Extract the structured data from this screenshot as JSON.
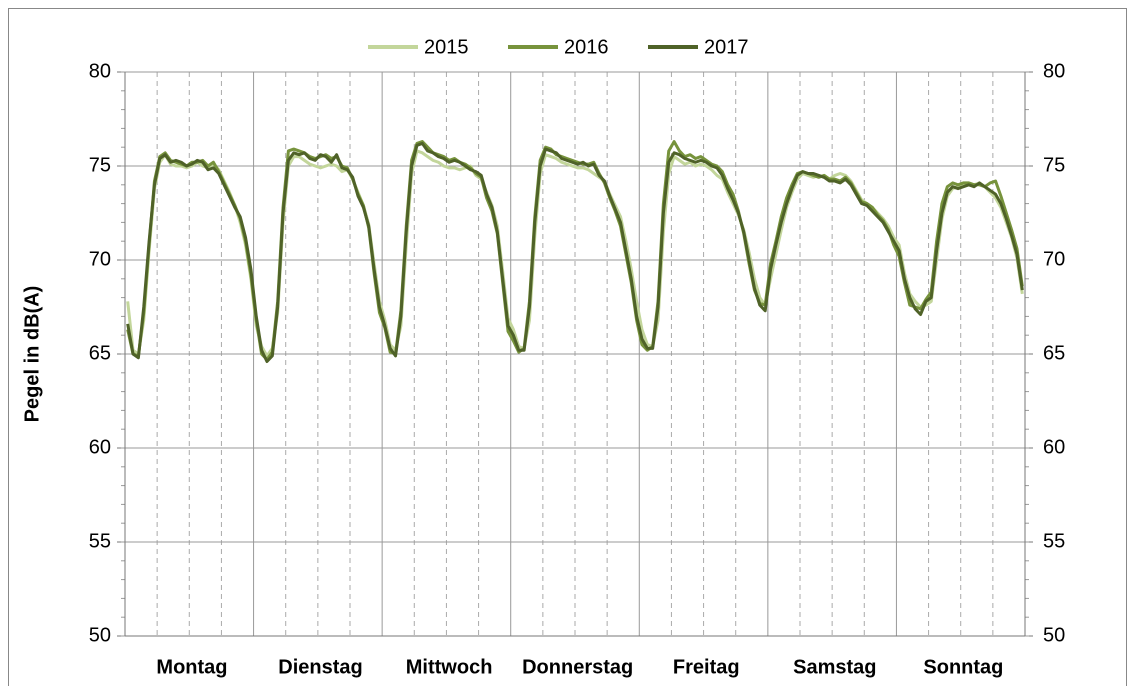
{
  "chart_data": {
    "type": "line",
    "y_label": "Pegel in dB(A)",
    "categories": [
      null,
      null,
      null,
      null,
      null,
      null,
      null,
      null,
      null,
      null,
      null,
      null,
      "Montag",
      null,
      null,
      null,
      null,
      null,
      null,
      null,
      null,
      null,
      null,
      null,
      null,
      null,
      null,
      null,
      null,
      null,
      null,
      null,
      null,
      null,
      null,
      null,
      "Dienstag",
      null,
      null,
      null,
      null,
      null,
      null,
      null,
      null,
      null,
      null,
      null,
      null,
      null,
      null,
      null,
      null,
      null,
      null,
      null,
      null,
      null,
      null,
      null,
      "Mittwoch",
      null,
      null,
      null,
      null,
      null,
      null,
      null,
      null,
      null,
      null,
      null,
      null,
      null,
      null,
      null,
      null,
      null,
      null,
      null,
      null,
      null,
      null,
      null,
      "Donnerstag",
      null,
      null,
      null,
      null,
      null,
      null,
      null,
      null,
      null,
      null,
      null,
      null,
      null,
      null,
      null,
      null,
      null,
      null,
      null,
      null,
      null,
      null,
      null,
      "Freitag",
      null,
      null,
      null,
      null,
      null,
      null,
      null,
      null,
      null,
      null,
      null,
      null,
      null,
      null,
      null,
      null,
      null,
      null,
      null,
      null,
      null,
      null,
      null,
      "Samstag",
      null,
      null,
      null,
      null,
      null,
      null,
      null,
      null,
      null,
      null,
      null,
      null,
      null,
      null,
      null,
      null,
      null,
      null,
      null,
      null,
      null,
      null,
      null,
      "Sonntag",
      null,
      null,
      null,
      null,
      null,
      null,
      null,
      null,
      null,
      null,
      null
    ],
    "series": [
      {
        "name": "2015",
        "color": "#c3d69b",
        "values": [
          67.8,
          65.2,
          65.0,
          66.8,
          70.5,
          73.8,
          75.2,
          75.6,
          75.1,
          75.0,
          75.0,
          74.9,
          75.0,
          75.2,
          75.0,
          74.9,
          75.1,
          74.8,
          74.2,
          73.6,
          72.9,
          72.0,
          70.8,
          69.0,
          66.5,
          65.4,
          64.9,
          65.3,
          67.2,
          72.0,
          75.0,
          75.5,
          75.5,
          75.3,
          75.1,
          75.0,
          74.9,
          75.0,
          75.1,
          75.0,
          74.7,
          74.8,
          74.3,
          73.6,
          72.9,
          71.9,
          69.8,
          67.8,
          66.8,
          65.5,
          65.2,
          66.5,
          70.8,
          74.6,
          75.8,
          75.7,
          75.5,
          75.3,
          75.2,
          75.0,
          74.9,
          74.9,
          74.8,
          74.9,
          75.0,
          74.5,
          74.3,
          73.6,
          72.9,
          71.8,
          69.4,
          66.9,
          66.3,
          65.4,
          65.3,
          66.8,
          71.3,
          74.6,
          75.6,
          75.5,
          75.4,
          75.2,
          75.1,
          75.0,
          74.9,
          74.9,
          74.8,
          74.6,
          74.4,
          74.2,
          73.5,
          72.9,
          72.3,
          71.0,
          69.5,
          67.8,
          66.3,
          65.5,
          65.4,
          66.8,
          71.5,
          74.6,
          75.5,
          75.3,
          75.1,
          75.2,
          75.0,
          75.1,
          75.0,
          74.8,
          74.5,
          74.3,
          73.6,
          73.0,
          72.4,
          71.6,
          70.4,
          69.0,
          68.0,
          67.6,
          69.0,
          70.3,
          71.6,
          72.8,
          73.6,
          74.3,
          74.6,
          74.5,
          74.4,
          74.5,
          74.4,
          74.3,
          74.5,
          74.6,
          74.5,
          74.2,
          73.7,
          73.2,
          73.0,
          72.8,
          72.5,
          72.2,
          71.8,
          71.2,
          70.8,
          69.3,
          68.2,
          67.8,
          67.5,
          67.6,
          67.8,
          70.0,
          72.2,
          73.4,
          73.8,
          73.9,
          74.0,
          74.1,
          74.0,
          74.1,
          73.9,
          73.6,
          73.3,
          72.8,
          72.0,
          71.2,
          70.1,
          68.2
        ]
      },
      {
        "name": "2016",
        "color": "#77933c",
        "values": [
          66.3,
          65.0,
          64.9,
          67.2,
          70.8,
          74.2,
          75.5,
          75.7,
          75.3,
          75.2,
          75.1,
          75.0,
          75.2,
          75.2,
          75.3,
          75.0,
          75.2,
          74.7,
          74.1,
          73.5,
          72.9,
          72.2,
          71.0,
          69.2,
          66.8,
          65.0,
          64.7,
          65.1,
          67.8,
          72.8,
          75.8,
          75.9,
          75.8,
          75.7,
          75.5,
          75.4,
          75.5,
          75.6,
          75.4,
          75.5,
          75.0,
          74.9,
          74.3,
          73.5,
          72.9,
          71.7,
          69.3,
          67.2,
          66.4,
          65.1,
          65.0,
          67.3,
          71.8,
          75.3,
          76.2,
          76.3,
          76.0,
          75.7,
          75.6,
          75.5,
          75.3,
          75.4,
          75.2,
          75.1,
          74.9,
          74.6,
          74.4,
          73.3,
          72.6,
          71.4,
          68.8,
          66.2,
          65.7,
          65.1,
          65.3,
          67.8,
          72.3,
          75.3,
          76.0,
          75.9,
          75.6,
          75.5,
          75.4,
          75.3,
          75.2,
          75.1,
          75.1,
          75.2,
          74.6,
          74.1,
          73.3,
          72.6,
          71.8,
          70.3,
          68.8,
          66.8,
          65.5,
          65.2,
          65.4,
          67.8,
          73.0,
          75.8,
          76.3,
          75.8,
          75.5,
          75.6,
          75.4,
          75.5,
          75.3,
          75.1,
          75.0,
          74.7,
          74.0,
          73.5,
          72.6,
          71.4,
          69.8,
          68.4,
          67.7,
          67.6,
          69.8,
          71.0,
          72.3,
          73.3,
          74.0,
          74.6,
          74.7,
          74.6,
          74.5,
          74.4,
          74.5,
          74.3,
          74.3,
          74.2,
          74.4,
          74.1,
          73.6,
          73.1,
          73.0,
          72.8,
          72.4,
          72.1,
          71.6,
          70.8,
          70.2,
          68.8,
          67.6,
          67.5,
          67.4,
          67.9,
          68.3,
          71.0,
          73.0,
          73.9,
          74.1,
          74.0,
          74.1,
          74.1,
          74.0,
          74.0,
          73.9,
          74.1,
          74.2,
          73.4,
          72.5,
          71.6,
          70.6,
          68.6
        ]
      },
      {
        "name": "2017",
        "color": "#4f6228",
        "values": [
          66.6,
          65.0,
          64.8,
          67.5,
          71.0,
          74.0,
          75.4,
          75.6,
          75.2,
          75.3,
          75.2,
          75.0,
          75.1,
          75.3,
          75.2,
          74.8,
          74.9,
          74.6,
          74.0,
          73.4,
          72.8,
          72.3,
          71.2,
          69.5,
          67.0,
          65.2,
          64.6,
          64.9,
          67.5,
          72.5,
          75.3,
          75.7,
          75.6,
          75.7,
          75.4,
          75.3,
          75.6,
          75.5,
          75.2,
          75.6,
          74.9,
          74.8,
          74.4,
          73.4,
          72.8,
          71.8,
          69.5,
          67.5,
          66.5,
          65.3,
          64.9,
          67.0,
          71.5,
          75.0,
          76.1,
          76.2,
          75.8,
          75.7,
          75.5,
          75.4,
          75.2,
          75.3,
          75.2,
          75.0,
          74.8,
          74.7,
          74.5,
          73.5,
          72.8,
          71.5,
          69.0,
          66.5,
          66.0,
          65.2,
          65.2,
          67.5,
          72.0,
          75.0,
          75.9,
          75.8,
          75.7,
          75.4,
          75.3,
          75.2,
          75.1,
          75.2,
          75.0,
          75.1,
          74.5,
          74.2,
          73.4,
          72.7,
          72.0,
          70.5,
          69.0,
          67.0,
          65.8,
          65.3,
          65.3,
          67.5,
          72.5,
          75.2,
          75.7,
          75.6,
          75.4,
          75.3,
          75.2,
          75.3,
          75.2,
          75.0,
          74.9,
          74.5,
          73.8,
          73.2,
          72.5,
          71.5,
          70.0,
          68.5,
          67.6,
          67.3,
          69.5,
          70.8,
          72.0,
          73.0,
          73.8,
          74.5,
          74.7,
          74.6,
          74.6,
          74.5,
          74.4,
          74.2,
          74.2,
          74.1,
          74.3,
          74.0,
          73.5,
          73.0,
          72.9,
          72.6,
          72.3,
          72.0,
          71.5,
          71.0,
          70.5,
          69.0,
          68.0,
          67.4,
          67.1,
          67.8,
          68.0,
          70.5,
          72.5,
          73.6,
          73.9,
          73.8,
          73.9,
          74.0,
          73.9,
          74.1,
          73.9,
          73.7,
          73.5,
          73.0,
          72.2,
          71.3,
          70.3,
          68.4
        ]
      }
    ],
    "ylim": [
      50,
      80
    ],
    "yticks": [
      50,
      55,
      60,
      65,
      70,
      75,
      80
    ],
    "y2lim": [
      50,
      80
    ],
    "y2ticks": [
      50,
      55,
      60,
      65,
      70,
      75,
      80
    ],
    "grid": true,
    "legend": "top"
  }
}
